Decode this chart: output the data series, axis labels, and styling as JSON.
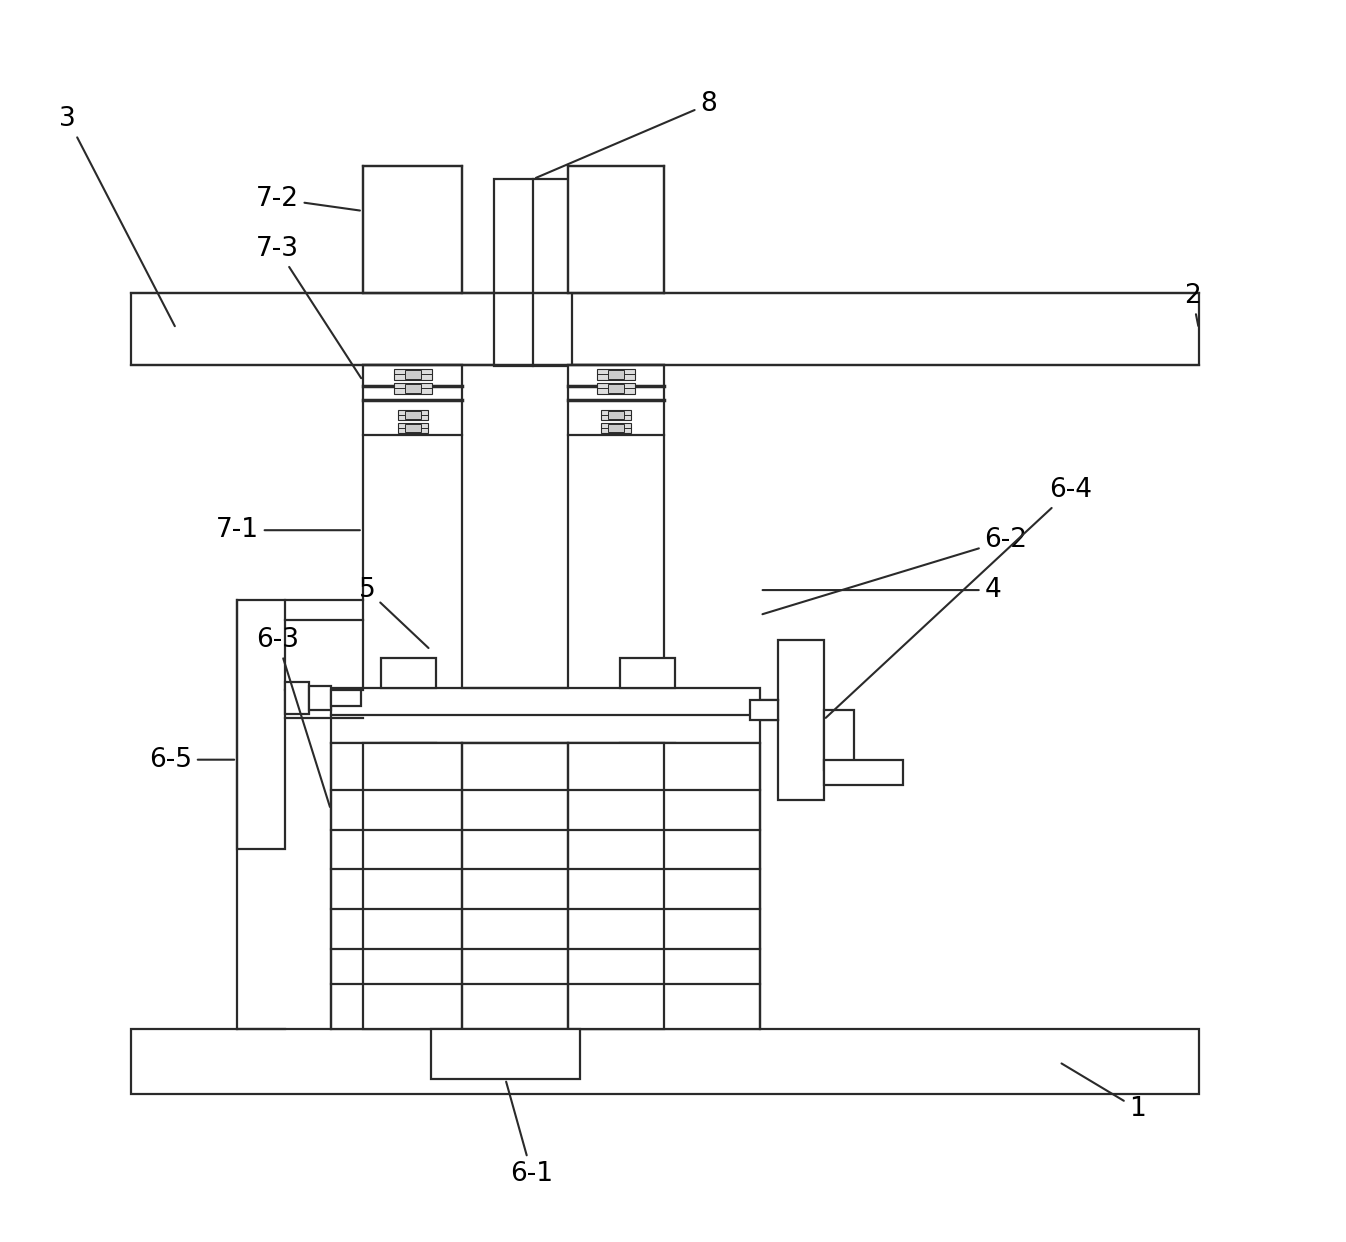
{
  "fig_width": 13.46,
  "fig_height": 12.42,
  "bg_color": "#ffffff",
  "line_color": "#2a2a2a",
  "line_width": 1.6,
  "label_fontsize": 19,
  "leader_color": "#2a2a2a"
}
